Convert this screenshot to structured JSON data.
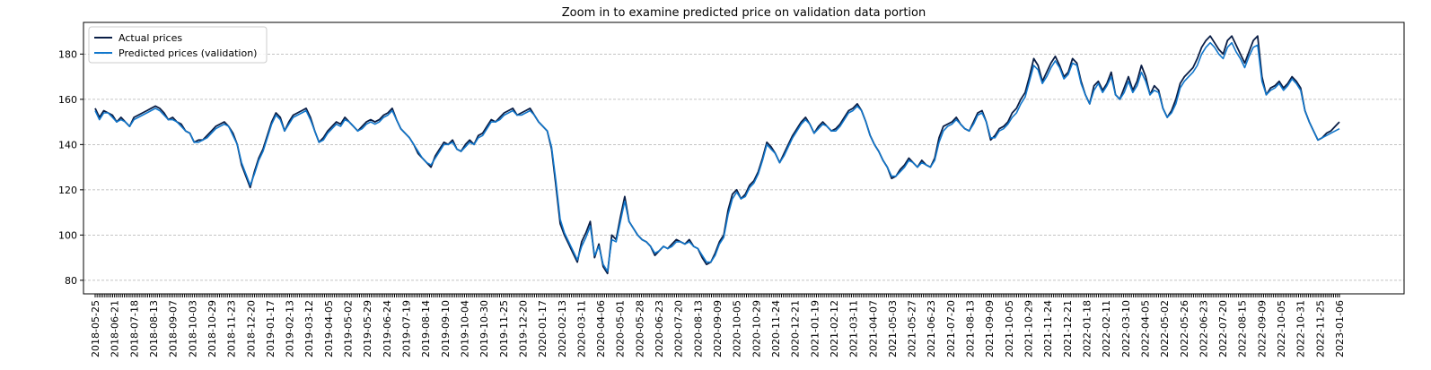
{
  "chart_data": {
    "type": "line",
    "title": "Zoom in to examine predicted price on validation data portion",
    "xlabel": "",
    "ylabel": "",
    "ylim": [
      74,
      194
    ],
    "grid": "horizontal dashed",
    "legend_position": "top-left",
    "y_ticks": [
      80,
      100,
      120,
      140,
      160,
      180
    ],
    "x_tick_labels": [
      "2018-05-25",
      "2018-06-21",
      "2018-07-18",
      "2018-08-13",
      "2018-09-07",
      "2018-10-03",
      "2018-10-29",
      "2018-11-23",
      "2018-12-20",
      "2019-01-17",
      "2019-02-13",
      "2019-03-12",
      "2019-04-05",
      "2019-05-02",
      "2019-05-29",
      "2019-06-24",
      "2019-07-19",
      "2019-08-14",
      "2019-09-10",
      "2019-10-04",
      "2019-10-30",
      "2019-11-25",
      "2019-12-20",
      "2020-01-17",
      "2020-02-13",
      "2020-03-11",
      "2020-04-06",
      "2020-05-01",
      "2020-05-28",
      "2020-06-23",
      "2020-07-20",
      "2020-08-13",
      "2020-09-09",
      "2020-10-05",
      "2020-10-29",
      "2020-11-24",
      "2020-12-21",
      "2021-01-19",
      "2021-02-12",
      "2021-03-11",
      "2021-04-07",
      "2021-05-03",
      "2021-05-27",
      "2021-06-23",
      "2021-07-20",
      "2021-08-13",
      "2021-09-09",
      "2021-10-05",
      "2021-10-29",
      "2021-11-24",
      "2021-12-21",
      "2022-01-18",
      "2022-02-11",
      "2022-03-10",
      "2022-04-05",
      "2022-05-02",
      "2022-05-26",
      "2022-06-23",
      "2022-07-20",
      "2022-08-15",
      "2022-09-09",
      "2022-10-05",
      "2022-10-31",
      "2022-11-25",
      "2023-01-06"
    ],
    "series": [
      {
        "name": "Actual prices",
        "color": "#0a1e46",
        "values": [
          156,
          152,
          155,
          154,
          153,
          150,
          152,
          150,
          148,
          152,
          153,
          154,
          155,
          156,
          157,
          156,
          154,
          151,
          152,
          150,
          149,
          146,
          145,
          141,
          142,
          142,
          144,
          146,
          148,
          149,
          150,
          148,
          145,
          140,
          131,
          126,
          121,
          128,
          134,
          138,
          144,
          150,
          154,
          152,
          146,
          150,
          153,
          154,
          155,
          156,
          152,
          146,
          141,
          143,
          146,
          148,
          150,
          149,
          152,
          150,
          148,
          146,
          148,
          150,
          151,
          150,
          151,
          153,
          154,
          156,
          151,
          147,
          145,
          143,
          140,
          136,
          134,
          132,
          130,
          135,
          138,
          141,
          140,
          142,
          138,
          137,
          140,
          142,
          140,
          144,
          145,
          148,
          151,
          150,
          152,
          154,
          155,
          156,
          153,
          154,
          155,
          156,
          153,
          150,
          148,
          146,
          138,
          122,
          105,
          100,
          96,
          92,
          88,
          97,
          101,
          106,
          90,
          96,
          86,
          83,
          100,
          98,
          108,
          117,
          106,
          103,
          100,
          98,
          97,
          95,
          91,
          93,
          95,
          94,
          96,
          98,
          97,
          96,
          98,
          95,
          94,
          90,
          87,
          88,
          92,
          97,
          100,
          111,
          118,
          120,
          116,
          118,
          122,
          124,
          128,
          134,
          141,
          139,
          136,
          132,
          136,
          140,
          144,
          147,
          150,
          152,
          149,
          145,
          148,
          150,
          148,
          146,
          147,
          149,
          152,
          155,
          156,
          158,
          155,
          150,
          144,
          140,
          137,
          133,
          130,
          125,
          126,
          129,
          131,
          134,
          132,
          130,
          133,
          131,
          130,
          134,
          143,
          148,
          149,
          150,
          152,
          149,
          147,
          146,
          150,
          154,
          155,
          150,
          142,
          144,
          147,
          148,
          150,
          154,
          156,
          160,
          163,
          170,
          178,
          175,
          168,
          172,
          176,
          179,
          175,
          170,
          172,
          178,
          176,
          168,
          162,
          158,
          166,
          168,
          164,
          167,
          172,
          162,
          160,
          165,
          170,
          164,
          168,
          175,
          170,
          162,
          166,
          164,
          156,
          152,
          155,
          160,
          167,
          170,
          172,
          174,
          178,
          183,
          186,
          188,
          185,
          182,
          180,
          186,
          188,
          184,
          180,
          176,
          181,
          186,
          188,
          170,
          162,
          165,
          166,
          168,
          165,
          167,
          170,
          168,
          165,
          155,
          150,
          146,
          142,
          143,
          145,
          146,
          148,
          150
        ]
      },
      {
        "name": "Predicted prices (validation)",
        "color": "#1177cc",
        "values": [
          155,
          151,
          154,
          154,
          152,
          150,
          151,
          150,
          148,
          151,
          152,
          153,
          154,
          155,
          156,
          155,
          153,
          151,
          151,
          150,
          148,
          146,
          145,
          141,
          141,
          142,
          143,
          145,
          147,
          148,
          149,
          148,
          144,
          140,
          132,
          127,
          122,
          127,
          133,
          137,
          143,
          149,
          153,
          151,
          146,
          149,
          152,
          153,
          154,
          155,
          151,
          146,
          141,
          142,
          145,
          147,
          149,
          148,
          151,
          150,
          148,
          146,
          147,
          149,
          150,
          149,
          150,
          152,
          153,
          155,
          151,
          147,
          145,
          143,
          140,
          137,
          134,
          132,
          131,
          134,
          137,
          140,
          140,
          141,
          138,
          137,
          139,
          141,
          140,
          143,
          144,
          147,
          150,
          150,
          151,
          153,
          154,
          155,
          153,
          153,
          154,
          155,
          153,
          150,
          148,
          146,
          139,
          124,
          107,
          101,
          97,
          93,
          89,
          95,
          99,
          104,
          91,
          95,
          87,
          84,
          98,
          97,
          106,
          115,
          106,
          103,
          100,
          98,
          97,
          95,
          92,
          93,
          95,
          94,
          95,
          97,
          97,
          96,
          97,
          95,
          94,
          91,
          88,
          88,
          91,
          96,
          99,
          109,
          116,
          119,
          116,
          117,
          121,
          123,
          127,
          133,
          140,
          138,
          136,
          132,
          135,
          139,
          143,
          146,
          149,
          151,
          149,
          145,
          147,
          149,
          148,
          146,
          146,
          148,
          151,
          154,
          155,
          157,
          155,
          150,
          144,
          140,
          137,
          133,
          130,
          126,
          126,
          128,
          130,
          133,
          132,
          130,
          132,
          131,
          130,
          133,
          141,
          146,
          148,
          149,
          151,
          149,
          147,
          146,
          149,
          153,
          154,
          150,
          143,
          143,
          146,
          147,
          149,
          152,
          154,
          158,
          161,
          168,
          175,
          173,
          167,
          170,
          174,
          177,
          174,
          169,
          171,
          176,
          175,
          167,
          162,
          158,
          164,
          167,
          163,
          166,
          170,
          162,
          160,
          163,
          168,
          163,
          166,
          172,
          168,
          162,
          164,
          163,
          156,
          152,
          154,
          158,
          165,
          168,
          170,
          172,
          175,
          180,
          183,
          185,
          183,
          180,
          178,
          183,
          185,
          181,
          178,
          174,
          179,
          183,
          184,
          168,
          162,
          164,
          165,
          167,
          164,
          166,
          169,
          167,
          164,
          155,
          150,
          146,
          142,
          143,
          144,
          145,
          146,
          147
        ]
      }
    ]
  }
}
